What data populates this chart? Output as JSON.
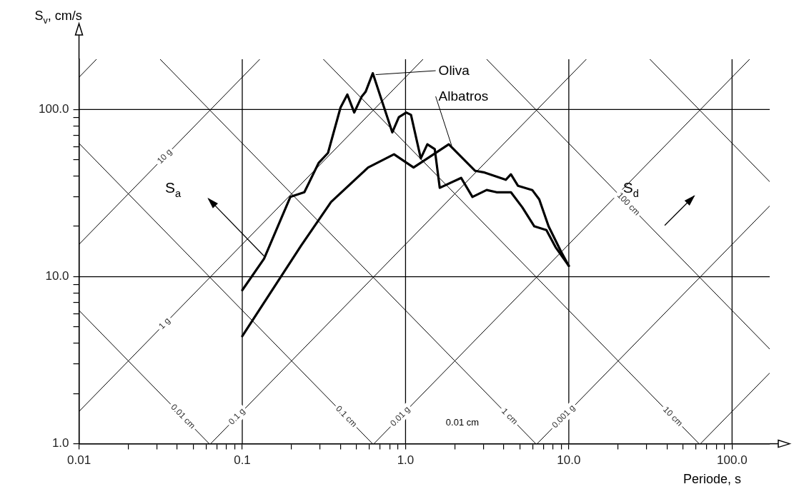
{
  "chart_data": {
    "type": "line",
    "xlabel": "Periode, s",
    "ylabel": "S$_{v}$, cm/s",
    "log": "xy",
    "xlim": [
      0.01,
      170
    ],
    "ylim": [
      1,
      200
    ],
    "xticks": [
      {
        "value": 0.01,
        "label": "0.01"
      },
      {
        "value": 0.02,
        "label": null
      },
      {
        "value": 0.03,
        "label": null
      },
      {
        "value": 0.04,
        "label": null
      },
      {
        "value": 0.05,
        "label": null
      },
      {
        "value": 0.06,
        "label": null
      },
      {
        "value": 0.07,
        "label": null
      },
      {
        "value": 0.08,
        "label": null
      },
      {
        "value": 0.09,
        "label": null
      },
      {
        "value": 0.1,
        "label": "0.1"
      },
      {
        "value": 0.2,
        "label": null
      },
      {
        "value": 0.3,
        "label": null
      },
      {
        "value": 0.4,
        "label": null
      },
      {
        "value": 0.5,
        "label": null
      },
      {
        "value": 0.6,
        "label": null
      },
      {
        "value": 0.7,
        "label": null
      },
      {
        "value": 0.8,
        "label": null
      },
      {
        "value": 0.9,
        "label": null
      },
      {
        "value": 1,
        "label": "1.0"
      },
      {
        "value": 2,
        "label": null
      },
      {
        "value": 3,
        "label": null
      },
      {
        "value": 4,
        "label": null
      },
      {
        "value": 5,
        "label": null
      },
      {
        "value": 6,
        "label": null
      },
      {
        "value": 7,
        "label": null
      },
      {
        "value": 8,
        "label": null
      },
      {
        "value": 9,
        "label": null
      },
      {
        "value": 10,
        "label": "10.0"
      },
      {
        "value": 20,
        "label": null
      },
      {
        "value": 30,
        "label": null
      },
      {
        "value": 40,
        "label": null
      },
      {
        "value": 50,
        "label": null
      },
      {
        "value": 60,
        "label": null
      },
      {
        "value": 70,
        "label": null
      },
      {
        "value": 80,
        "label": null
      },
      {
        "value": 90,
        "label": null
      },
      {
        "value": 100,
        "label": "100.0"
      }
    ],
    "yticks": [
      {
        "value": 1,
        "label": "1.0"
      },
      {
        "value": 2,
        "label": null
      },
      {
        "value": 3,
        "label": null
      },
      {
        "value": 4,
        "label": null
      },
      {
        "value": 5,
        "label": null
      },
      {
        "value": 6,
        "label": null
      },
      {
        "value": 7,
        "label": null
      },
      {
        "value": 8,
        "label": null
      },
      {
        "value": 9,
        "label": null
      },
      {
        "value": 10,
        "label": "10.0"
      },
      {
        "value": 20,
        "label": null
      },
      {
        "value": 30,
        "label": null
      },
      {
        "value": 40,
        "label": null
      },
      {
        "value": 50,
        "label": null
      },
      {
        "value": 60,
        "label": null
      },
      {
        "value": 70,
        "label": null
      },
      {
        "value": 80,
        "label": null
      },
      {
        "value": 90,
        "label": null
      },
      {
        "value": 100,
        "label": "100.0"
      }
    ],
    "grid": true,
    "legend": "top",
    "marker": "none",
    "series": [
      {
        "name": "Oliva",
        "color": "#000000",
        "x": [
          0.1,
          0.136,
          0.197,
          0.24,
          0.294,
          0.335,
          0.36,
          0.4,
          0.44,
          0.485,
          0.54,
          0.57,
          0.63,
          0.83,
          0.91,
          1.01,
          1.08,
          1.24,
          1.36,
          1.51,
          1.62,
          2.19,
          2.57,
          3.14,
          3.61,
          4.42,
          5.19,
          6.15,
          7.29,
          8.3,
          10
        ],
        "values": [
          8.3,
          12.8,
          30,
          32,
          48,
          55,
          71,
          103,
          123,
          96,
          120,
          128,
          165,
          73,
          90,
          96,
          93,
          51,
          62,
          58,
          34,
          39,
          30,
          33,
          32,
          32,
          26,
          20,
          19,
          15,
          11.6
        ]
      },
      {
        "name": "Albatros",
        "color": "#000000",
        "x": [
          0.1,
          0.23,
          0.35,
          0.59,
          0.85,
          1.12,
          1.84,
          2.67,
          3.05,
          4.11,
          4.42,
          4.88,
          5.97,
          6.59,
          7.52,
          8.91,
          10
        ],
        "values": [
          4.4,
          15.4,
          28,
          45,
          54,
          45,
          62,
          43,
          42,
          38,
          41,
          35,
          33,
          29,
          20,
          14.3,
          11.6
        ]
      },
      {
        "color": "#000000",
        "x": [
          0.01,
          0.0128
        ],
        "values": [
          156,
          200
        ]
      },
      {
        "name": "10 g",
        "color": "#000000",
        "x": [
          0.01,
          0.128
        ],
        "values": [
          15.6,
          200
        ]
      },
      {
        "name": "1 g",
        "color": "#000000",
        "x": [
          0.01,
          1.28
        ],
        "values": [
          1.56,
          200
        ]
      },
      {
        "name": "0.1 g",
        "color": "#000000",
        "x": [
          0.064,
          12.8
        ],
        "values": [
          1,
          200
        ]
      },
      {
        "name": "0.01 g",
        "color": "#000000",
        "x": [
          0.64,
          128
        ],
        "values": [
          1,
          200
        ]
      },
      {
        "name": "0.001 g",
        "color": "#000000",
        "x": [
          6.4,
          170
        ],
        "values": [
          1,
          26.5
        ]
      },
      {
        "color": "#000000",
        "x": [
          64,
          170
        ],
        "values": [
          1,
          2.65
        ]
      },
      {
        "name": "0.01 cm",
        "color": "#000000",
        "x": [
          0.01,
          0.0628
        ],
        "values": [
          6.28,
          1
        ]
      },
      {
        "name": "0.1 cm",
        "color": "#000000",
        "x": [
          0.01,
          0.628
        ],
        "values": [
          62.8,
          1
        ]
      },
      {
        "name": "1 cm",
        "color": "#000000",
        "x": [
          0.0314,
          6.28
        ],
        "values": [
          200,
          1
        ]
      },
      {
        "name": "10 cm",
        "color": "#000000",
        "x": [
          0.314,
          62.8
        ],
        "values": [
          200,
          1
        ]
      },
      {
        "name": "100 cm",
        "color": "#000000",
        "x": [
          3.14,
          170
        ],
        "values": [
          200,
          3.69
        ]
      },
      {
        "color": "#000000",
        "x": [
          31.4,
          170
        ],
        "values": [
          200,
          37
        ]
      }
    ],
    "annotations": [
      "S$_{a}$",
      "S$_{d}$",
      "0.01 cm"
    ]
  }
}
